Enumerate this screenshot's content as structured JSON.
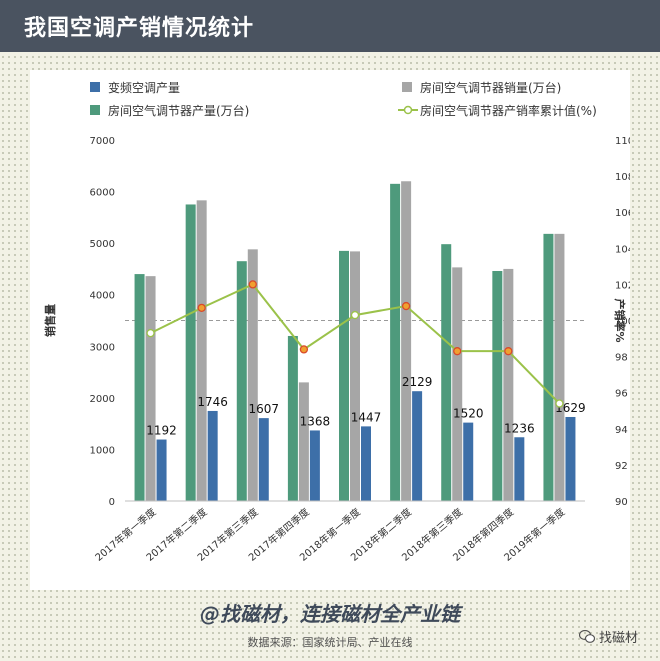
{
  "header": {
    "title": "我国空调产销情况统计"
  },
  "footer": {
    "slogan": "@找磁材，连接磁材全产业链",
    "source": "数据来源：国家统计局、产业在线",
    "wechat": "找磁材"
  },
  "colors": {
    "header_bg": "#4a5360",
    "inverter": "#3d6fa8",
    "production": "#4e9a7c",
    "sales": "#a6a6a6",
    "rate_line": "#9bc24a",
    "rate_marker_highlight": "#f0a030"
  },
  "chart_data": {
    "type": "bar",
    "categories": [
      "2017年第一季度",
      "2017年第二季度",
      "2017年第三季度",
      "2017年第四季度",
      "2018年第一季度",
      "2018年第二季度",
      "2018年第三季度",
      "2018年第四季度",
      "2019年第一季度"
    ],
    "series": [
      {
        "name": "房间空气调节器产量(万台)",
        "type": "bar",
        "axis": "left",
        "values": [
          4400,
          5750,
          4650,
          3200,
          4850,
          6150,
          4980,
          4460,
          5180
        ]
      },
      {
        "name": "房间空气调节器销量(万台)",
        "type": "bar",
        "axis": "left",
        "values": [
          4360,
          5830,
          4880,
          2300,
          4840,
          6200,
          4530,
          4500,
          5180
        ]
      },
      {
        "name": "变频空调产量",
        "type": "bar",
        "axis": "left",
        "values": [
          1192,
          1746,
          1607,
          1368,
          1447,
          2129,
          1520,
          1236,
          1629
        ]
      },
      {
        "name": "房间空气调节器产销率累计值(%)",
        "type": "line",
        "axis": "right",
        "values": [
          99.3,
          100.7,
          102.0,
          98.4,
          100.3,
          100.8,
          98.3,
          98.3,
          95.4
        ]
      }
    ],
    "data_labels": [
      "1192",
      "1746",
      "1607",
      "1368",
      "1447",
      "2129",
      "1520",
      "1236",
      "1629"
    ],
    "highlighted_points": [
      1,
      2,
      3,
      5,
      6,
      7
    ],
    "ylabel_left": "销售量",
    "ylabel_right": "产销率%",
    "ylim_left": [
      0,
      7000
    ],
    "yticks_left": [
      "0",
      "1000",
      "2000",
      "3000",
      "4000",
      "5000",
      "6000",
      "7000"
    ],
    "ylim_right": [
      90,
      110
    ],
    "yticks_right": [
      "90",
      "92",
      "94",
      "96",
      "98",
      "100",
      "102",
      "104",
      "106",
      "108",
      "110"
    ],
    "reference_line": 100,
    "legend_placement": "top"
  }
}
